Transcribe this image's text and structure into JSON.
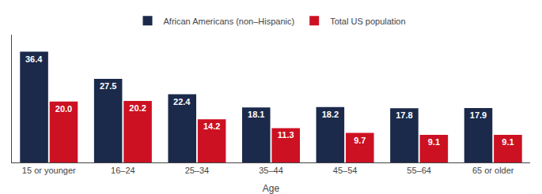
{
  "chart_data": {
    "type": "bar",
    "xlabel": "Age",
    "categories": [
      "15 or younger",
      "16–24",
      "25–34",
      "35–44",
      "45–54",
      "55–64",
      "65 or older"
    ],
    "series": [
      {
        "name": "African Americans (non–Hispanic)",
        "color": "#1b2a4a",
        "values": [
          36.4,
          27.5,
          22.4,
          18.1,
          18.2,
          17.8,
          17.9
        ],
        "value_labels": [
          "36.4",
          "27.5",
          "22.4",
          "18.1",
          "18.2",
          "17.8",
          "17.9"
        ]
      },
      {
        "name": "Total US population",
        "color": "#cc1122",
        "values": [
          20.0,
          20.2,
          14.2,
          11.3,
          9.7,
          9.1,
          9.1
        ],
        "value_labels": [
          "20.0",
          "20.2",
          "14.2",
          "11.3",
          "9.7",
          "9.1",
          "9.1"
        ]
      }
    ],
    "ylim": [
      0,
      42
    ],
    "grid": false,
    "legend": "top",
    "data_labels": true,
    "tick_labels": "x"
  }
}
